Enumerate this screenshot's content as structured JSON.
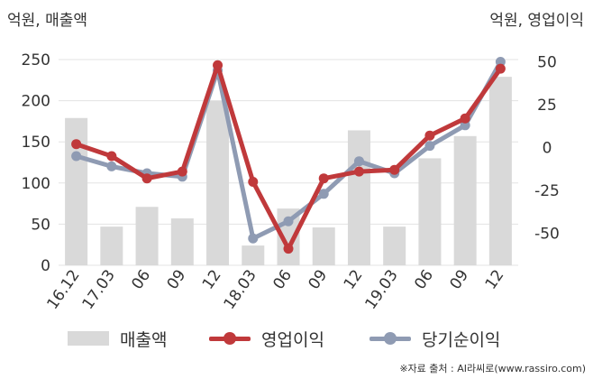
{
  "unit_left": "억원, 매출액",
  "unit_right": "억원, 영업이익",
  "source": "※자료 출처 : AI라씨로(www.rassiro.com)",
  "chart_data": {
    "type": "bar",
    "categories": [
      "16.12",
      "17.03",
      "06",
      "09",
      "12",
      "18.03",
      "06",
      "09",
      "12",
      "19.03",
      "06",
      "09",
      "12"
    ],
    "ylim_left": [
      0,
      250
    ],
    "yticks_left": [
      0,
      50,
      100,
      150,
      200,
      250
    ],
    "ylim_right": [
      -70,
      50
    ],
    "yticks_right": [
      -50,
      -25,
      0,
      25,
      50
    ],
    "grid": true,
    "legend_position": "bottom",
    "series": [
      {
        "name": "매출액",
        "kind": "bar",
        "axis": "left",
        "color": "#d9d9d9",
        "values": [
          179,
          47,
          71,
          57,
          200,
          24,
          69,
          46,
          164,
          47,
          130,
          157,
          229
        ]
      },
      {
        "name": "영업이익",
        "kind": "line",
        "axis": "right",
        "color": "#c0393b",
        "values": [
          2,
          -5,
          -18,
          -14,
          48,
          -20,
          -59,
          -18,
          -14,
          -13,
          7,
          17,
          46
        ]
      },
      {
        "name": "당기순이익",
        "kind": "line",
        "axis": "right",
        "color": "#8f9bb3",
        "values": [
          -5,
          -11,
          -15,
          -17,
          45,
          -53,
          -43,
          -27,
          -8,
          -15,
          1,
          13,
          50
        ]
      }
    ]
  }
}
